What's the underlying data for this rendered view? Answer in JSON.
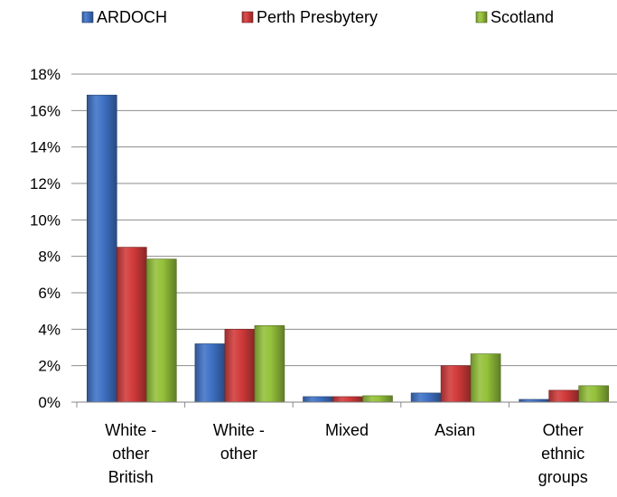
{
  "chart_data": {
    "type": "bar",
    "categories": [
      [
        "White -",
        "other",
        "British"
      ],
      [
        "White -",
        "other"
      ],
      [
        "Mixed"
      ],
      [
        "Asian"
      ],
      [
        "Other",
        "ethnic",
        "groups"
      ]
    ],
    "series": [
      {
        "name": "ARDOCH",
        "color": "#3f72c6",
        "values": [
          16.85,
          3.2,
          0.3,
          0.5,
          0.15
        ]
      },
      {
        "name": "Perth Presbytery",
        "color": "#d23a3a",
        "values": [
          8.5,
          4.0,
          0.3,
          2.0,
          0.65
        ]
      },
      {
        "name": "Scotland",
        "color": "#94c13a",
        "values": [
          7.85,
          4.2,
          0.35,
          2.65,
          0.9
        ]
      }
    ],
    "y_ticks": [
      "0%",
      "2%",
      "4%",
      "6%",
      "8%",
      "10%",
      "12%",
      "14%",
      "16%",
      "18%"
    ],
    "ylim": [
      0,
      18
    ],
    "grid": true,
    "legend_position": "top"
  }
}
